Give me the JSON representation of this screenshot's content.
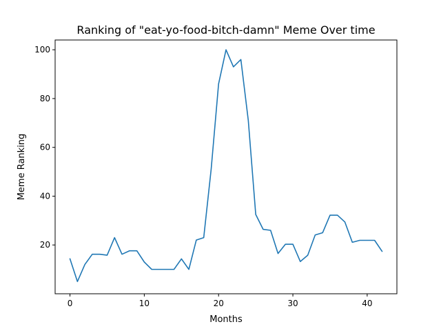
{
  "chart_data": {
    "type": "line",
    "title": "Ranking of \"eat-yo-food-bitch-damn\" Meme Over time",
    "xlabel": "Months",
    "ylabel": "Meme Ranking",
    "xlim": [
      -2,
      44
    ],
    "ylim": [
      0,
      104
    ],
    "xticks": [
      0,
      10,
      20,
      30,
      40
    ],
    "yticks": [
      20,
      40,
      60,
      80,
      100
    ],
    "grid": false,
    "legend": "none",
    "line_color": "#1f77b4",
    "series": [
      {
        "x": [
          0,
          1,
          2,
          3,
          4,
          5,
          6,
          7,
          8,
          9,
          10,
          11,
          12,
          13,
          14,
          15,
          16,
          17,
          18,
          19,
          20,
          21,
          22,
          23,
          24,
          25,
          26,
          27,
          28,
          29,
          30,
          31,
          32,
          33,
          34,
          35,
          36,
          37,
          38,
          39,
          40,
          41,
          42
        ],
        "values": [
          14.3,
          5,
          12,
          16.2,
          16.2,
          15.8,
          23,
          16.2,
          17.6,
          17.6,
          13,
          10,
          10,
          10,
          10,
          14.3,
          10,
          22,
          23,
          51,
          86,
          100,
          93,
          96,
          71,
          32.5,
          26.4,
          26,
          16.5,
          20.3,
          20.3,
          13.2,
          15.8,
          24.1,
          25,
          32.2,
          32.2,
          29.4,
          21.1,
          21.9,
          21.9,
          21.9,
          17.4
        ]
      }
    ]
  }
}
